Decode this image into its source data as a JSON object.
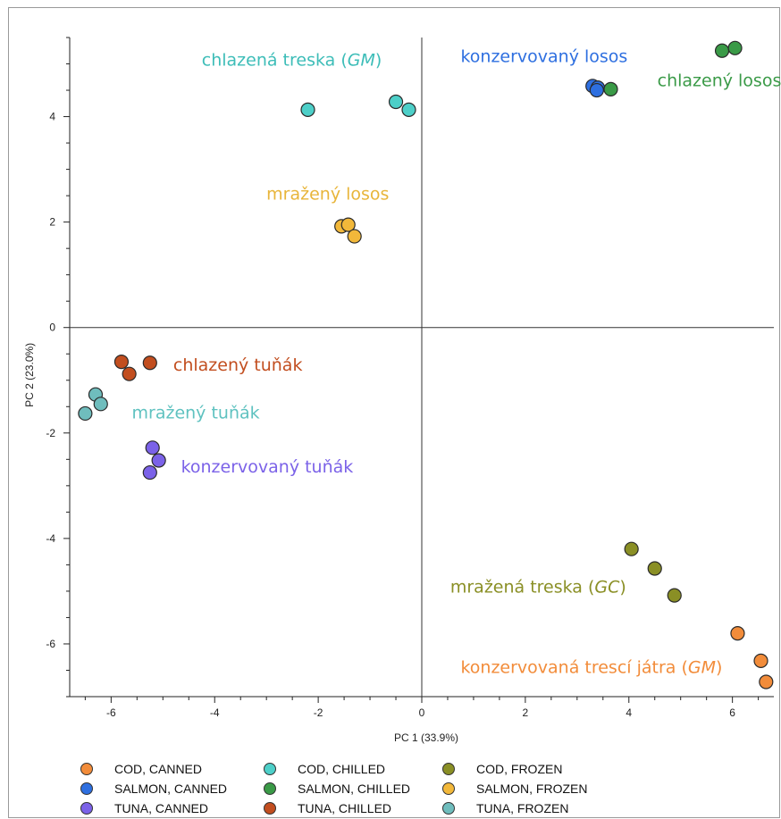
{
  "chart_data": {
    "type": "scatter",
    "title": "",
    "xlabel": "PC 1 (33.9%)",
    "ylabel": "PC 2 (23.0%)",
    "xlim": [
      -6.8,
      6.8
    ],
    "ylim": [
      -7.0,
      5.5
    ],
    "xticks": [
      -6,
      -4,
      -2,
      0,
      2,
      4,
      6
    ],
    "yticks": [
      -6,
      -4,
      -2,
      0,
      2,
      4
    ],
    "grid": false,
    "legend_position": "bottom",
    "series": [
      {
        "name": "COD, CANNED",
        "color": "#f28c3a",
        "x": [
          6.1,
          6.55,
          6.65
        ],
        "y": [
          -5.8,
          -6.32,
          -6.72
        ]
      },
      {
        "name": "SALMON, CANNED",
        "color": "#2e6fe0",
        "x": [
          3.3,
          3.4,
          3.38
        ],
        "y": [
          4.58,
          4.55,
          4.5
        ]
      },
      {
        "name": "TUNA, CANNED",
        "color": "#7b62e8",
        "x": [
          -5.2,
          -5.08,
          -5.25
        ],
        "y": [
          -2.28,
          -2.52,
          -2.75
        ]
      },
      {
        "name": "COD, CHILLED",
        "color": "#4dcfc8",
        "x": [
          -2.2,
          -0.5,
          -0.25
        ],
        "y": [
          4.13,
          4.28,
          4.13
        ]
      },
      {
        "name": "SALMON, CHILLED",
        "color": "#3a9a47",
        "x": [
          3.65,
          5.8,
          6.05
        ],
        "y": [
          4.52,
          5.25,
          5.3
        ]
      },
      {
        "name": "TUNA, CHILLED",
        "color": "#c24e1f",
        "x": [
          -5.8,
          -5.65,
          -5.25
        ],
        "y": [
          -0.65,
          -0.88,
          -0.67
        ]
      },
      {
        "name": "COD, FROZEN",
        "color": "#8a8f25",
        "x": [
          4.05,
          4.5,
          4.88
        ],
        "y": [
          -4.2,
          -4.57,
          -5.08
        ]
      },
      {
        "name": "SALMON, FROZEN",
        "color": "#f2b83a",
        "x": [
          -1.55,
          -1.42,
          -1.3
        ],
        "y": [
          1.92,
          1.95,
          1.73
        ]
      },
      {
        "name": "TUNA, FROZEN",
        "color": "#6fbdbd",
        "x": [
          -6.5,
          -6.3,
          -6.2
        ],
        "y": [
          -1.63,
          -1.27,
          -1.45
        ]
      }
    ],
    "annotations": [
      {
        "text_pre": "chlazená treska (",
        "text_em": "GM",
        "text_post": ")",
        "x": -4.25,
        "y": 4.97,
        "color": "#3dbdb8"
      },
      {
        "text_pre": "konzervovaný losos",
        "text_em": "",
        "text_post": "",
        "x": 0.75,
        "y": 5.03,
        "color": "#2e6fe0"
      },
      {
        "text_pre": "chlazený losos",
        "text_em": "",
        "text_post": "",
        "x": 4.55,
        "y": 4.58,
        "color": "#3a9a47"
      },
      {
        "text_pre": "mražený losos",
        "text_em": "",
        "text_post": "",
        "x": -3.0,
        "y": 2.43,
        "color": "#e8b53a"
      },
      {
        "text_pre": "chlazený tuňák",
        "text_em": "",
        "text_post": "",
        "x": -4.8,
        "y": -0.82,
        "color": "#c24e1f"
      },
      {
        "text_pre": "mražený tuňák",
        "text_em": "",
        "text_post": "",
        "x": -5.6,
        "y": -1.72,
        "color": "#5fc2c0"
      },
      {
        "text_pre": "konzervovaný tuňák",
        "text_em": "",
        "text_post": "",
        "x": -4.65,
        "y": -2.75,
        "color": "#7b62e8"
      },
      {
        "text_pre": "mražená treska (",
        "text_em": "GC",
        "text_post": ")",
        "x": 0.55,
        "y": -5.03,
        "color": "#8a8f25"
      },
      {
        "text_pre": "konzervovaná trescí játra (",
        "text_em": "GM",
        "text_post": ")",
        "x": 0.75,
        "y": -6.55,
        "color": "#f28c3a"
      }
    ]
  },
  "legend": {
    "items": [
      {
        "label": "COD, CANNED",
        "color": "#f28c3a"
      },
      {
        "label": "SALMON, CANNED",
        "color": "#2e6fe0"
      },
      {
        "label": "TUNA, CANNED",
        "color": "#7b62e8"
      },
      {
        "label": "COD, CHILLED",
        "color": "#4dcfc8"
      },
      {
        "label": "SALMON, CHILLED",
        "color": "#3a9a47"
      },
      {
        "label": "TUNA, CHILLED",
        "color": "#c24e1f"
      },
      {
        "label": "COD, FROZEN",
        "color": "#8a8f25"
      },
      {
        "label": "SALMON, FROZEN",
        "color": "#f2b83a"
      },
      {
        "label": "TUNA, FROZEN",
        "color": "#6fbdbd"
      }
    ]
  }
}
